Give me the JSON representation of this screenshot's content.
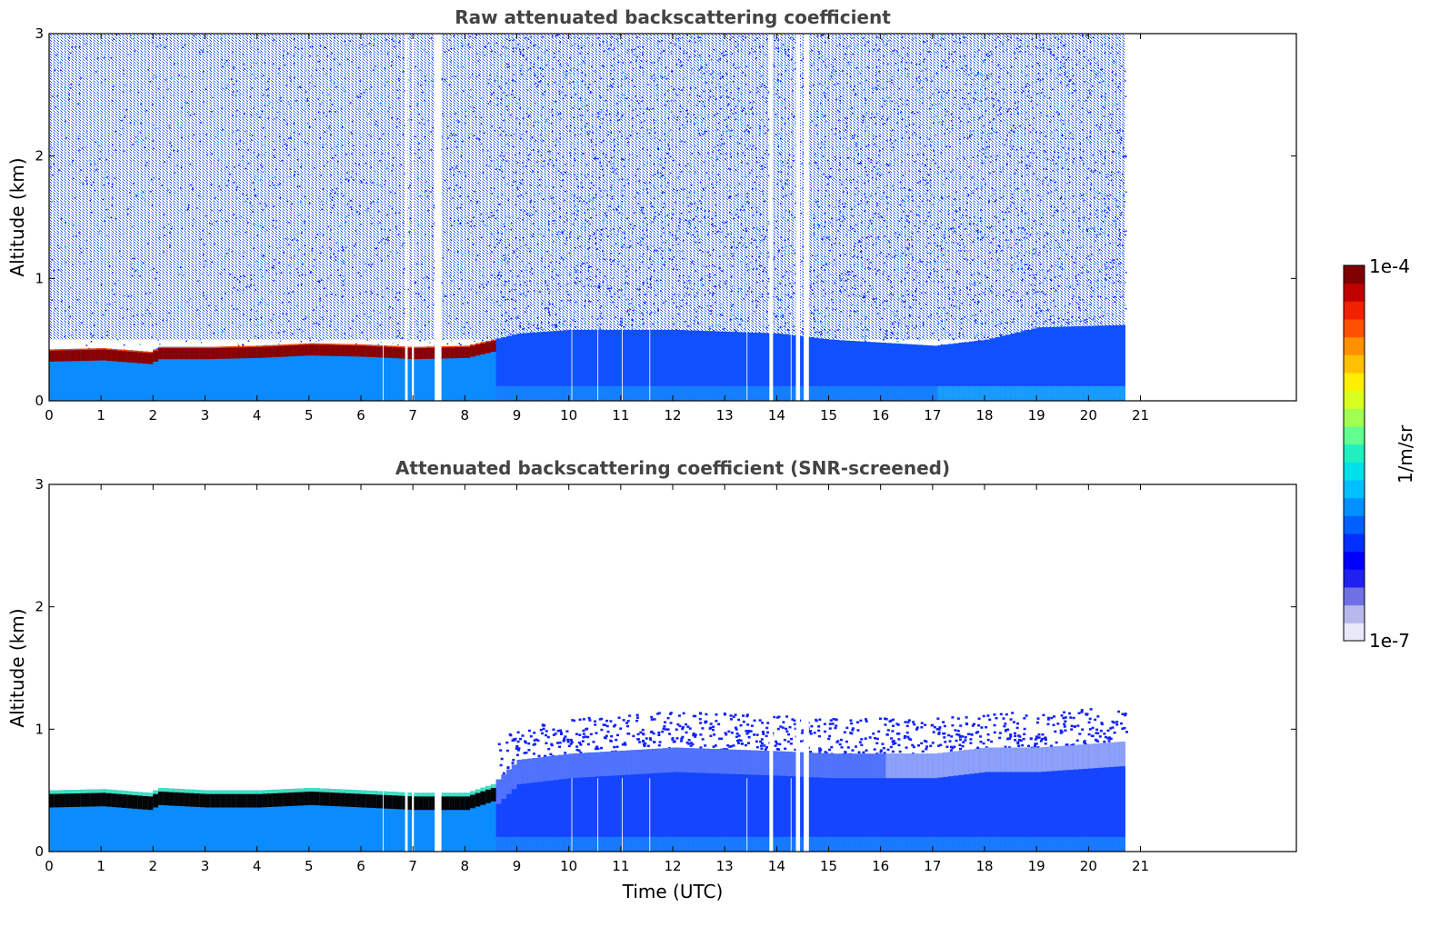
{
  "chart_data": [
    {
      "type": "heatmap",
      "title": "Raw attenuated backscattering coefficient",
      "xlabel": "",
      "ylabel": "Altitude (km)",
      "xlim": [
        0,
        24
      ],
      "ylim": [
        0,
        3
      ],
      "xticks": [
        "0",
        "1",
        "2",
        "3",
        "4",
        "5",
        "6",
        "7",
        "8",
        "9",
        "10",
        "11",
        "12",
        "13",
        "14",
        "15",
        "16",
        "17",
        "18",
        "19",
        "20",
        "21"
      ],
      "yticks": [
        "0",
        "1",
        "2",
        "3"
      ],
      "data_end_time": 20.7,
      "boundary_layer_top_km": [
        [
          0,
          0.42
        ],
        [
          1,
          0.43
        ],
        [
          1.9,
          0.4
        ],
        [
          2.1,
          0.44
        ],
        [
          3,
          0.44
        ],
        [
          4,
          0.45
        ],
        [
          5,
          0.47
        ],
        [
          6,
          0.46
        ],
        [
          7,
          0.44
        ],
        [
          8,
          0.45
        ],
        [
          8.5,
          0.5
        ],
        [
          9,
          0.55
        ],
        [
          10,
          0.58
        ],
        [
          12,
          0.58
        ],
        [
          14,
          0.55
        ],
        [
          15,
          0.5
        ],
        [
          17,
          0.45
        ],
        [
          18,
          0.5
        ],
        [
          19,
          0.6
        ],
        [
          20.7,
          0.62
        ]
      ],
      "gaps_hours": [
        [
          6.85,
          6.9
        ],
        [
          6.98,
          7.02
        ],
        [
          7.42,
          7.55
        ],
        [
          13.86,
          13.93
        ],
        [
          14.37,
          14.45
        ],
        [
          14.52,
          14.62
        ]
      ],
      "colorbar": {
        "min_label": "1e-7",
        "max_label": "1e-4",
        "label": "1/m/sr"
      }
    },
    {
      "type": "heatmap",
      "title": "Attenuated backscattering coefficient (SNR-screened)",
      "xlabel": "Time (UTC)",
      "ylabel": "Altitude (km)",
      "xlim": [
        0,
        24
      ],
      "ylim": [
        0,
        3
      ],
      "xticks": [
        "0",
        "1",
        "2",
        "3",
        "4",
        "5",
        "6",
        "7",
        "8",
        "9",
        "10",
        "11",
        "12",
        "13",
        "14",
        "15",
        "16",
        "17",
        "18",
        "19",
        "20",
        "21"
      ],
      "yticks": [
        "0",
        "1",
        "2",
        "3"
      ],
      "data_end_time": 20.7,
      "boundary_layer_top_km": [
        [
          0,
          0.5
        ],
        [
          1,
          0.51
        ],
        [
          1.9,
          0.48
        ],
        [
          2.1,
          0.52
        ],
        [
          3,
          0.5
        ],
        [
          4,
          0.5
        ],
        [
          5,
          0.52
        ],
        [
          6,
          0.5
        ],
        [
          7,
          0.48
        ],
        [
          8,
          0.48
        ],
        [
          8.5,
          0.55
        ],
        [
          9,
          0.75
        ],
        [
          10,
          0.8
        ],
        [
          12,
          0.85
        ],
        [
          14,
          0.82
        ],
        [
          15,
          0.8
        ],
        [
          17,
          0.8
        ],
        [
          18,
          0.85
        ],
        [
          19,
          0.85
        ],
        [
          20.7,
          0.9
        ]
      ],
      "gaps_hours": [
        [
          6.85,
          6.9
        ],
        [
          6.98,
          7.02
        ],
        [
          7.42,
          7.55
        ],
        [
          13.86,
          13.93
        ],
        [
          14.37,
          14.45
        ],
        [
          14.52,
          14.62
        ]
      ]
    }
  ],
  "colorbar": {
    "max_label": "1e-4",
    "min_label": "1e-7",
    "unit_label": "1/m/sr",
    "colors": [
      "#e8e8f8",
      "#b8b8ec",
      "#7070e6",
      "#2020f0",
      "#0000ff",
      "#0030ff",
      "#0060ff",
      "#0090ff",
      "#00bfff",
      "#00e0e8",
      "#20f0c0",
      "#60ff90",
      "#a0ff50",
      "#d8ff20",
      "#ffee00",
      "#ffc000",
      "#ff9000",
      "#ff5000",
      "#f02000",
      "#c00000",
      "#800000"
    ]
  }
}
